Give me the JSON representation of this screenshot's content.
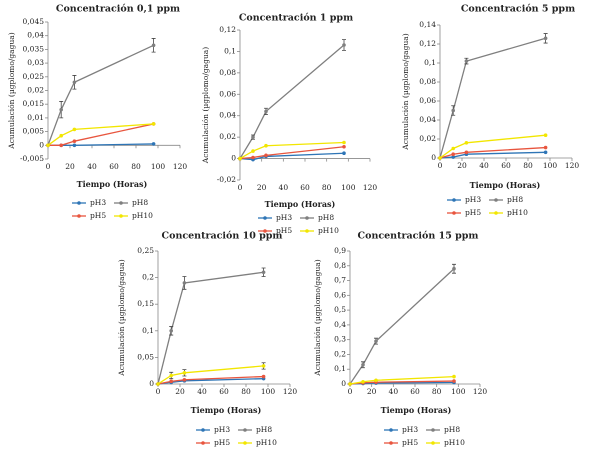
{
  "chart_data": [
    {
      "type": "line",
      "title": "Concentración 0,1 ppm",
      "x_label": "Tiempo (Horas)",
      "y_label": "Acumulación (µgplomo/gagua)",
      "x": [
        0,
        12,
        24,
        96
      ],
      "xlim": [
        0,
        120
      ],
      "xticks": [
        0,
        20,
        40,
        60,
        80,
        100,
        120
      ],
      "ylim": [
        -0.005,
        0.045
      ],
      "yticks": [
        {
          "value": -0.005,
          "label": "-0,005"
        },
        0,
        {
          "value": 0.005,
          "label": "0,005"
        },
        {
          "value": 0.01,
          "label": "0,01"
        },
        {
          "value": 0.015,
          "label": "0,015"
        },
        {
          "value": 0.02,
          "label": "0,02"
        },
        {
          "value": 0.025,
          "label": "0,025"
        },
        {
          "value": 0.03,
          "label": "0,03"
        },
        {
          "value": 0.035,
          "label": "0,035"
        },
        {
          "value": 0.04,
          "label": "0,04"
        },
        {
          "value": 0.045,
          "label": "0,045"
        }
      ],
      "series": [
        {
          "name": "pH3",
          "color": "#2e75b6",
          "values": [
            0,
            0,
            0,
            0.0005
          ]
        },
        {
          "name": "pH8",
          "color": "#7f7f7f",
          "values": [
            0,
            0.013,
            0.023,
            0.0365
          ],
          "errors": [
            0,
            0.003,
            0.0025,
            0.0025
          ]
        },
        {
          "name": "pH5",
          "color": "#e8553e",
          "values": [
            0,
            0,
            0.0015,
            0.0078
          ]
        },
        {
          "name": "pH10",
          "color": "#f2e600",
          "values": [
            0,
            0.0035,
            0.0058,
            0.0078
          ]
        }
      ]
    },
    {
      "type": "line",
      "title": "Concentración 1 ppm",
      "x_label": "Tiempo (Horas)",
      "y_label": "Acumulación (µgplomo/gagua)",
      "x": [
        0,
        12,
        24,
        96
      ],
      "xlim": [
        0,
        120
      ],
      "xticks": [
        0,
        20,
        40,
        60,
        80,
        100,
        120
      ],
      "ylim": [
        -0.02,
        0.12
      ],
      "yticks": [
        {
          "value": -0.02,
          "label": "-0,02"
        },
        0,
        {
          "value": 0.02,
          "label": "0,02"
        },
        {
          "value": 0.04,
          "label": "0,04"
        },
        {
          "value": 0.06,
          "label": "0,06"
        },
        {
          "value": 0.08,
          "label": "0,08"
        },
        {
          "value": 0.1,
          "label": "0,1"
        },
        {
          "value": 0.12,
          "label": "0,12"
        }
      ],
      "series": [
        {
          "name": "pH3",
          "color": "#2e75b6",
          "values": [
            0,
            -0.001,
            0.002,
            0.005
          ]
        },
        {
          "name": "pH8",
          "color": "#7f7f7f",
          "values": [
            0,
            0.02,
            0.044,
            0.106
          ],
          "errors": [
            0,
            0.002,
            0.003,
            0.005
          ]
        },
        {
          "name": "pH5",
          "color": "#e8553e",
          "values": [
            0,
            0.001,
            0.003,
            0.011
          ]
        },
        {
          "name": "pH10",
          "color": "#f2e600",
          "values": [
            0,
            0.007,
            0.012,
            0.015
          ]
        }
      ]
    },
    {
      "type": "line",
      "title": "Concentración 5 ppm",
      "x_label": "Tiempo (Horas)",
      "y_label": "Acumulación (µgplomo/gagua)",
      "x": [
        0,
        12,
        24,
        96
      ],
      "xlim": [
        0,
        120
      ],
      "xticks": [
        0,
        20,
        40,
        60,
        80,
        100,
        120
      ],
      "ylim": [
        0,
        0.14
      ],
      "yticks": [
        0,
        {
          "value": 0.02,
          "label": "0,02"
        },
        {
          "value": 0.04,
          "label": "0,04"
        },
        {
          "value": 0.06,
          "label": "0,06"
        },
        {
          "value": 0.08,
          "label": "0,08"
        },
        {
          "value": 0.1,
          "label": "0,1"
        },
        {
          "value": 0.12,
          "label": "0,12"
        },
        {
          "value": 0.14,
          "label": "0,14"
        }
      ],
      "series": [
        {
          "name": "pH3",
          "color": "#2e75b6",
          "values": [
            0,
            0.001,
            0.004,
            0.006
          ]
        },
        {
          "name": "pH8",
          "color": "#7f7f7f",
          "values": [
            0,
            0.05,
            0.102,
            0.126
          ],
          "errors": [
            0,
            0.005,
            0.003,
            0.005
          ]
        },
        {
          "name": "pH5",
          "color": "#e8553e",
          "values": [
            0,
            0.004,
            0.006,
            0.011
          ]
        },
        {
          "name": "pH10",
          "color": "#f2e600",
          "values": [
            0,
            0.01,
            0.016,
            0.024
          ]
        }
      ]
    },
    {
      "type": "line",
      "title": "Concentración 10 ppm",
      "x_label": "Tiempo (Horas)",
      "y_label": "Acumulación (µgplomo/gagua)",
      "x": [
        0,
        12,
        24,
        96
      ],
      "xlim": [
        0,
        120
      ],
      "xticks": [
        0,
        20,
        40,
        60,
        80,
        100,
        120
      ],
      "ylim": [
        0,
        0.25
      ],
      "yticks": [
        0,
        {
          "value": 0.05,
          "label": "0,05"
        },
        {
          "value": 0.1,
          "label": "0,1"
        },
        {
          "value": 0.15,
          "label": "0,15"
        },
        {
          "value": 0.2,
          "label": "0,2"
        },
        {
          "value": 0.25,
          "label": "0,25"
        }
      ],
      "series": [
        {
          "name": "pH3",
          "color": "#2e75b6",
          "values": [
            0,
            0.003,
            0.006,
            0.01
          ]
        },
        {
          "name": "pH8",
          "color": "#7f7f7f",
          "values": [
            0,
            0.1,
            0.19,
            0.21
          ],
          "errors": [
            0,
            0.008,
            0.012,
            0.008
          ]
        },
        {
          "name": "pH5",
          "color": "#e8553e",
          "values": [
            0,
            0.005,
            0.008,
            0.014
          ]
        },
        {
          "name": "pH10",
          "color": "#f2e600",
          "values": [
            0,
            0.016,
            0.021,
            0.034
          ],
          "errors": [
            0,
            0.006,
            0.006,
            0.006
          ]
        }
      ]
    },
    {
      "type": "line",
      "title": "Concentración 15 ppm",
      "x_label": "Tiempo (Horas)",
      "y_label": "Acumulación (µgplomo/gagua)",
      "x": [
        0,
        12,
        24,
        96
      ],
      "xlim": [
        0,
        120
      ],
      "xticks": [
        0,
        20,
        40,
        60,
        80,
        100,
        120
      ],
      "ylim": [
        0,
        0.9
      ],
      "yticks": [
        0,
        {
          "value": 0.1,
          "label": "0,1"
        },
        {
          "value": 0.2,
          "label": "0,2"
        },
        {
          "value": 0.3,
          "label": "0,3"
        },
        {
          "value": 0.4,
          "label": "0,4"
        },
        {
          "value": 0.5,
          "label": "0,5"
        },
        {
          "value": 0.6,
          "label": "0,6"
        },
        {
          "value": 0.7,
          "label": "0,7"
        },
        {
          "value": 0.8,
          "label": "0,8"
        },
        {
          "value": 0.9,
          "label": "0,9"
        }
      ],
      "series": [
        {
          "name": "pH3",
          "color": "#2e75b6",
          "values": [
            0,
            0.003,
            0.006,
            0.01
          ]
        },
        {
          "name": "pH8",
          "color": "#7f7f7f",
          "values": [
            0,
            0.13,
            0.29,
            0.78
          ],
          "errors": [
            0,
            0.02,
            0.02,
            0.03
          ]
        },
        {
          "name": "pH5",
          "color": "#e8553e",
          "values": [
            0,
            0.008,
            0.012,
            0.02
          ]
        },
        {
          "name": "pH10",
          "color": "#f2e600",
          "values": [
            0,
            0.015,
            0.025,
            0.05
          ]
        }
      ]
    }
  ]
}
